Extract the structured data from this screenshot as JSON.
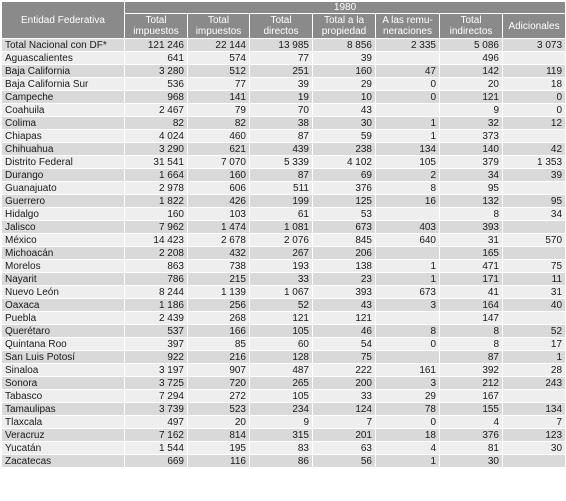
{
  "header": {
    "entity_label": "Entidad Federativa",
    "year": "1980",
    "columns": [
      "Total impuestos",
      "Total impuestos",
      "Total directos",
      "Total a la propiedad",
      "A las remu- neraciones",
      "Total indirectos",
      "Adicionales"
    ]
  },
  "rows": [
    [
      "Total Nacional con DF*",
      "121 246",
      "22 144",
      "13 985",
      "8 856",
      "2 335",
      "5 086",
      "3 073"
    ],
    [
      "Aguascalientes",
      "641",
      "574",
      "77",
      "39",
      "",
      "496",
      ""
    ],
    [
      "Baja California",
      "3 280",
      "512",
      "251",
      "160",
      "47",
      "142",
      "119"
    ],
    [
      "Baja California Sur",
      "536",
      "77",
      "39",
      "29",
      "0",
      "20",
      "18"
    ],
    [
      "Campeche",
      "968",
      "141",
      "19",
      "10",
      "0",
      "121",
      "0"
    ],
    [
      "Coahuila",
      "2 467",
      "79",
      "70",
      "43",
      "",
      "9",
      "0"
    ],
    [
      "Colima",
      "82",
      "82",
      "38",
      "30",
      "1",
      "32",
      "12"
    ],
    [
      "Chiapas",
      "4 024",
      "460",
      "87",
      "59",
      "1",
      "373",
      ""
    ],
    [
      "Chihuahua",
      "3 290",
      "621",
      "439",
      "238",
      "134",
      "140",
      "42"
    ],
    [
      "Distrito Federal",
      "31 541",
      "7 070",
      "5 339",
      "4 102",
      "105",
      "379",
      "1 353"
    ],
    [
      "Durango",
      "1 664",
      "160",
      "87",
      "69",
      "2",
      "34",
      "39"
    ],
    [
      "Guanajuato",
      "2 978",
      "606",
      "511",
      "376",
      "8",
      "95",
      ""
    ],
    [
      "Guerrero",
      "1 822",
      "426",
      "199",
      "125",
      "16",
      "132",
      "95"
    ],
    [
      "Hidalgo",
      "160",
      "103",
      "61",
      "53",
      "",
      "8",
      "34"
    ],
    [
      "Jalisco",
      "7 962",
      "1 474",
      "1 081",
      "673",
      "403",
      "393",
      ""
    ],
    [
      "México",
      "14 423",
      "2 678",
      "2 076",
      "845",
      "640",
      "31",
      "570"
    ],
    [
      "Michoacán",
      "2 208",
      "432",
      "267",
      "206",
      "",
      "165",
      ""
    ],
    [
      "Morelos",
      "863",
      "738",
      "193",
      "138",
      "1",
      "471",
      "75"
    ],
    [
      "Nayarit",
      "786",
      "215",
      "33",
      "23",
      "1",
      "171",
      "11"
    ],
    [
      "Nuevo León",
      "8 244",
      "1 139",
      "1 067",
      "393",
      "673",
      "41",
      "31"
    ],
    [
      "Oaxaca",
      "1 186",
      "256",
      "52",
      "43",
      "3",
      "164",
      "40"
    ],
    [
      "Puebla",
      "2 439",
      "268",
      "121",
      "121",
      "",
      "147",
      ""
    ],
    [
      "Querétaro",
      "537",
      "166",
      "105",
      "46",
      "8",
      "8",
      "52"
    ],
    [
      "Quintana Roo",
      "397",
      "85",
      "60",
      "54",
      "0",
      "8",
      "17"
    ],
    [
      "San Luis Potosí",
      "922",
      "216",
      "128",
      "75",
      "",
      "87",
      "1"
    ],
    [
      "Sinaloa",
      "3 197",
      "907",
      "487",
      "222",
      "161",
      "392",
      "28"
    ],
    [
      "Sonora",
      "3 725",
      "720",
      "265",
      "200",
      "3",
      "212",
      "243"
    ],
    [
      "Tabasco",
      "7 294",
      "272",
      "105",
      "33",
      "29",
      "167",
      ""
    ],
    [
      "Tamaulipas",
      "3 739",
      "523",
      "234",
      "124",
      "78",
      "155",
      "134"
    ],
    [
      "Tlaxcala",
      "497",
      "20",
      "9",
      "7",
      "0",
      "4",
      "7"
    ],
    [
      "Veracruz",
      "7 162",
      "814",
      "315",
      "201",
      "18",
      "376",
      "123"
    ],
    [
      "Yucatán",
      "1 544",
      "195",
      "83",
      "63",
      "4",
      "81",
      "30"
    ],
    [
      "Zacatecas",
      "669",
      "116",
      "86",
      "56",
      "1",
      "30",
      ""
    ]
  ]
}
